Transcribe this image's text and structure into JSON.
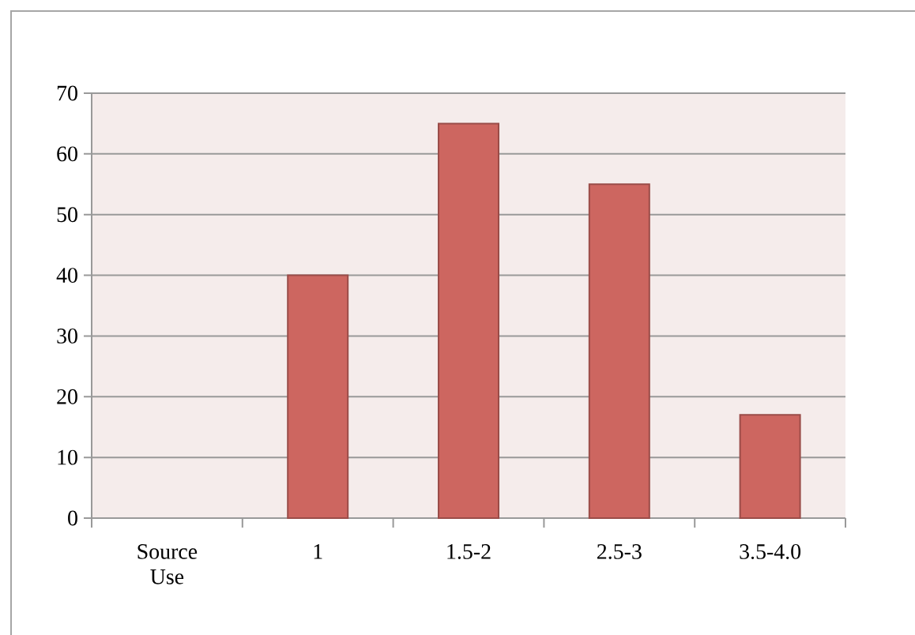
{
  "chart_data": {
    "type": "bar",
    "categories": [
      "Source Use",
      "1",
      "1.5-2",
      "2.5-3",
      "3.5-4.0"
    ],
    "values": [
      null,
      40,
      65,
      55,
      17
    ],
    "color": "#cd6660",
    "ylim": [
      0,
      70
    ],
    "yticks": [
      0,
      10,
      20,
      30,
      40,
      50,
      60,
      70
    ],
    "grid": "y"
  }
}
